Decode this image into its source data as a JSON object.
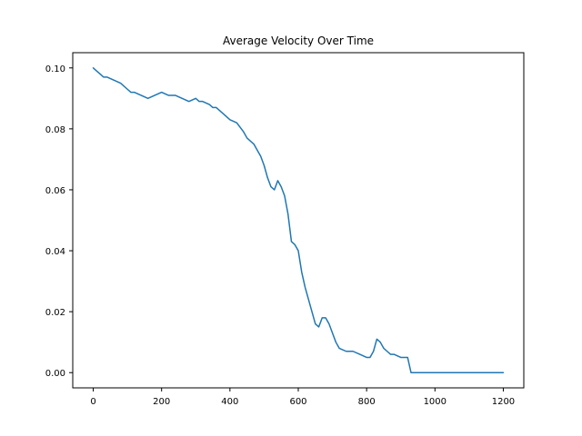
{
  "chart_data": {
    "type": "line",
    "title": "Average Velocity Over Time",
    "xlabel": "",
    "ylabel": "",
    "xlim": [
      -60,
      1260
    ],
    "ylim": [
      -0.005,
      0.105
    ],
    "x_ticks": [
      0,
      200,
      400,
      600,
      800,
      1000,
      1200
    ],
    "x_tick_labels": [
      "0",
      "200",
      "400",
      "600",
      "800",
      "1000",
      "1200"
    ],
    "y_ticks": [
      0.0,
      0.02,
      0.04,
      0.06,
      0.08,
      0.1
    ],
    "y_tick_labels": [
      "0.00",
      "0.02",
      "0.04",
      "0.06",
      "0.08",
      "0.10"
    ],
    "grid": false,
    "legend": "none",
    "series": [
      {
        "color": "#1f77b4",
        "x": [
          0,
          10,
          20,
          30,
          40,
          60,
          80,
          100,
          110,
          120,
          140,
          160,
          180,
          200,
          220,
          240,
          260,
          280,
          300,
          310,
          320,
          340,
          350,
          360,
          380,
          400,
          420,
          440,
          450,
          460,
          470,
          480,
          490,
          500,
          510,
          520,
          530,
          540,
          550,
          560,
          570,
          580,
          590,
          600,
          610,
          620,
          630,
          640,
          650,
          660,
          670,
          680,
          690,
          700,
          710,
          720,
          740,
          760,
          780,
          800,
          810,
          820,
          830,
          840,
          850,
          860,
          870,
          880,
          900,
          920,
          930,
          940,
          1000,
          1100,
          1200
        ],
        "y": [
          0.1,
          0.099,
          0.098,
          0.097,
          0.097,
          0.096,
          0.095,
          0.093,
          0.092,
          0.092,
          0.091,
          0.09,
          0.091,
          0.092,
          0.091,
          0.091,
          0.09,
          0.089,
          0.09,
          0.089,
          0.089,
          0.088,
          0.087,
          0.087,
          0.085,
          0.083,
          0.082,
          0.079,
          0.077,
          0.076,
          0.075,
          0.073,
          0.071,
          0.068,
          0.064,
          0.061,
          0.06,
          0.063,
          0.061,
          0.058,
          0.052,
          0.043,
          0.042,
          0.04,
          0.033,
          0.028,
          0.024,
          0.02,
          0.016,
          0.015,
          0.018,
          0.018,
          0.016,
          0.013,
          0.01,
          0.008,
          0.007,
          0.007,
          0.006,
          0.005,
          0.005,
          0.007,
          0.011,
          0.01,
          0.008,
          0.007,
          0.006,
          0.006,
          0.005,
          0.005,
          0.0,
          0.0,
          0.0,
          0.0,
          0.0
        ]
      }
    ]
  }
}
